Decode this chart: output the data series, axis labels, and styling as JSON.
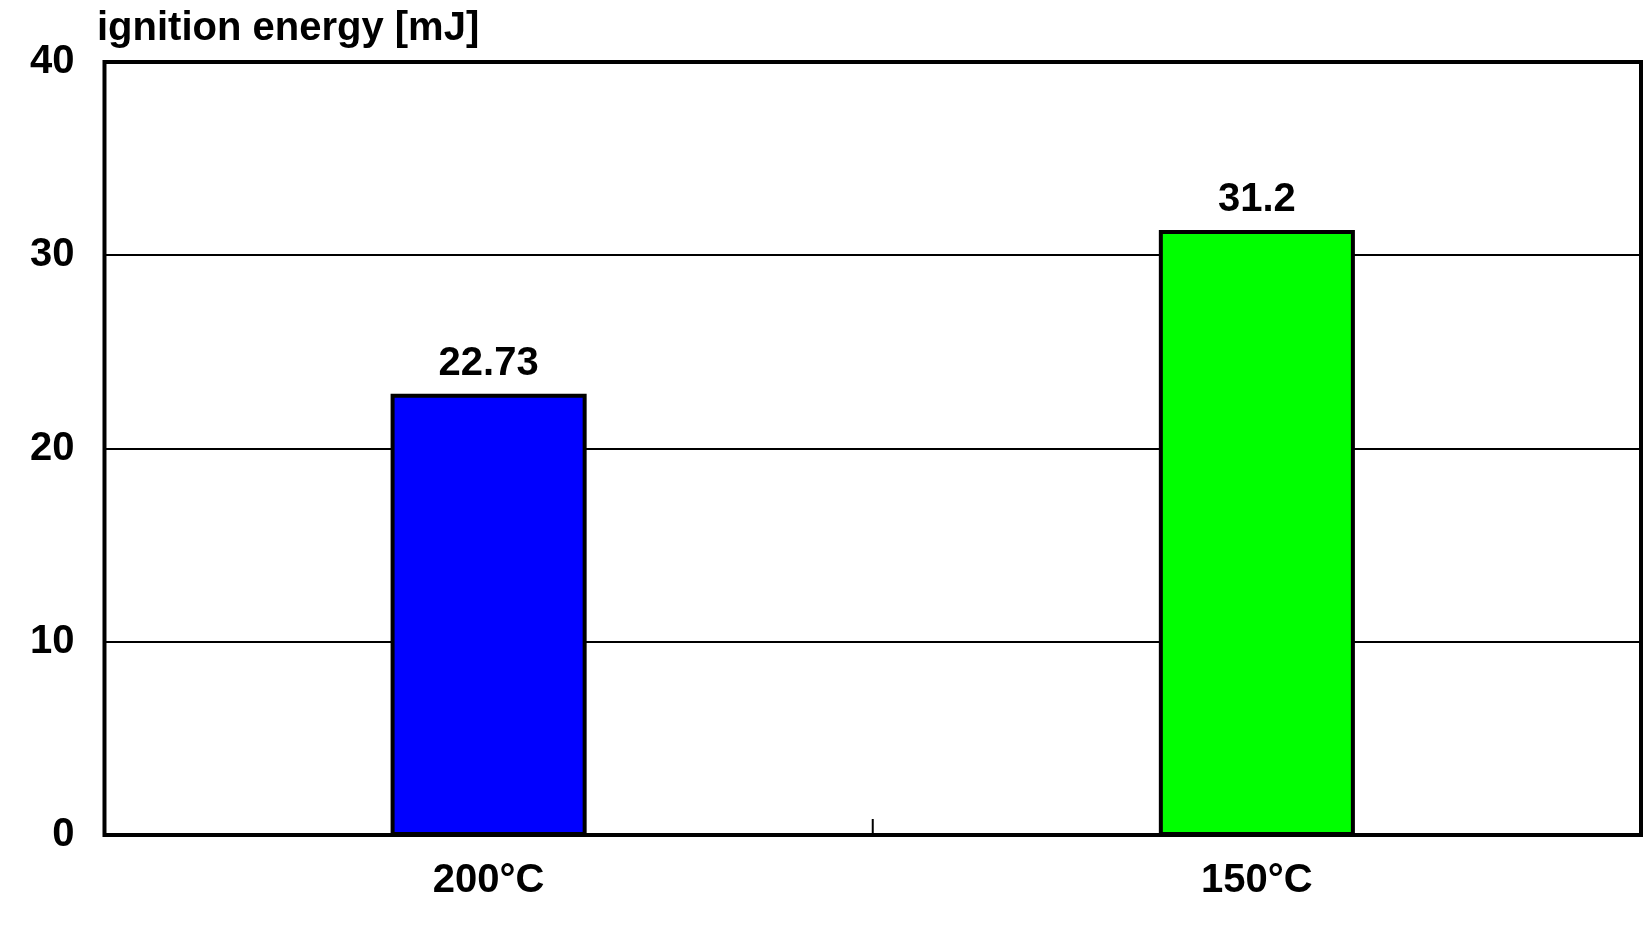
{
  "chart_data": {
    "type": "bar",
    "ylabel": "ignition energy [mJ]",
    "categories": [
      "200°C",
      "150°C"
    ],
    "values": [
      22.73,
      31.2
    ],
    "colors": [
      "#0000ff",
      "#00ff00"
    ],
    "ylim": [
      0,
      40
    ],
    "yticks": [
      0,
      10,
      20,
      30,
      40
    ],
    "grid": "y",
    "legend": false,
    "data_labels": true
  }
}
